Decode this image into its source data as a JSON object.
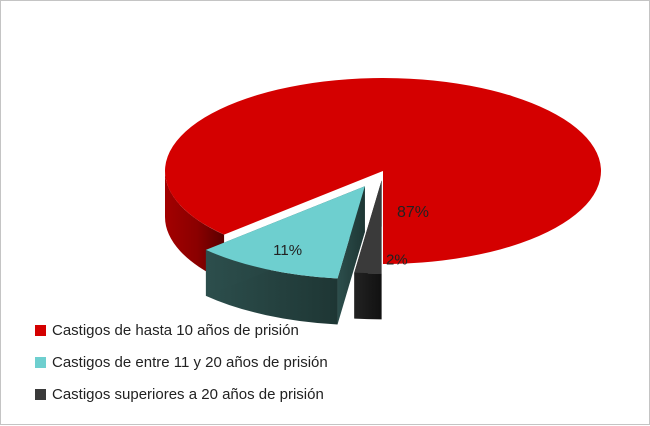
{
  "chart_data": {
    "type": "pie",
    "title": "",
    "categories": [
      "Castigos de hasta 10 años de prisión",
      "Castigos de entre 11 y 20 años de prisión",
      "Castigos superiores a 20 años de prisión"
    ],
    "values": [
      87,
      11,
      2
    ],
    "labels": [
      "87%",
      "11%",
      "2%"
    ],
    "colors": [
      "#d40000",
      "#6ecfcf",
      "#3a3a3a"
    ],
    "legend_position": "bottom-left",
    "style": "3d-exploded"
  }
}
